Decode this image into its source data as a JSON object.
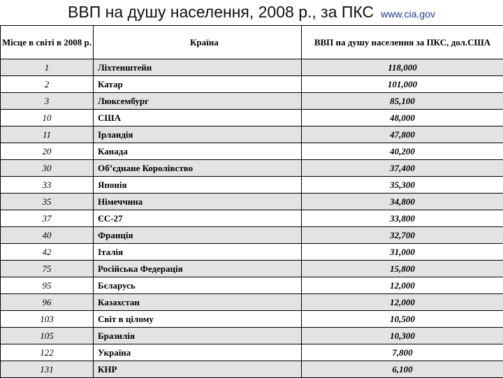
{
  "title": {
    "main": "ВВП на душу населення, 2008 р., за ПКС",
    "source": "www.cia.gov"
  },
  "table": {
    "headers": {
      "rank": "Місце в світі в 2008 р.",
      "country": "Країна",
      "gdp": "ВВП на душу населення за ПКС, дол.США"
    },
    "rows": [
      {
        "rank": "1",
        "country": "Ліхтенштейн",
        "gdp": "118,000"
      },
      {
        "rank": "2",
        "country": "Катар",
        "gdp": "101,000"
      },
      {
        "rank": "3",
        "country": "Люксембург",
        "gdp": "85,100"
      },
      {
        "rank": "10",
        "country": "США",
        "gdp": "48,000"
      },
      {
        "rank": "11",
        "country": "Ірландія",
        "gdp": "47,800"
      },
      {
        "rank": "20",
        "country": "Канада",
        "gdp": "40,200"
      },
      {
        "rank": "30",
        "country": "Об’єднане Королівство",
        "gdp": "37,400"
      },
      {
        "rank": "33",
        "country": "Японія",
        "gdp": "35,300"
      },
      {
        "rank": "35",
        "country": "Німеччина",
        "gdp": "34,800"
      },
      {
        "rank": "37",
        "country": "ЄС-27",
        "gdp": "33,800"
      },
      {
        "rank": "40",
        "country": "Франція",
        "gdp": "32,700"
      },
      {
        "rank": "42",
        "country": "Італія",
        "gdp": "31,000"
      },
      {
        "rank": "75",
        "country": "Російська Федерація",
        "gdp": "15,800"
      },
      {
        "rank": "95",
        "country": "Бєларусь",
        "gdp": "12,000"
      },
      {
        "rank": "96",
        "country": "Казахстан",
        "gdp": "12,000"
      },
      {
        "rank": "103",
        "country": "Світ в цілому",
        "gdp": "10,500"
      },
      {
        "rank": "105",
        "country": "Бразилія",
        "gdp": "10,300"
      },
      {
        "rank": "122",
        "country": "Україна",
        "gdp": "7,800"
      },
      {
        "rank": "131",
        "country": "КНР",
        "gdp": "6,100"
      }
    ]
  }
}
